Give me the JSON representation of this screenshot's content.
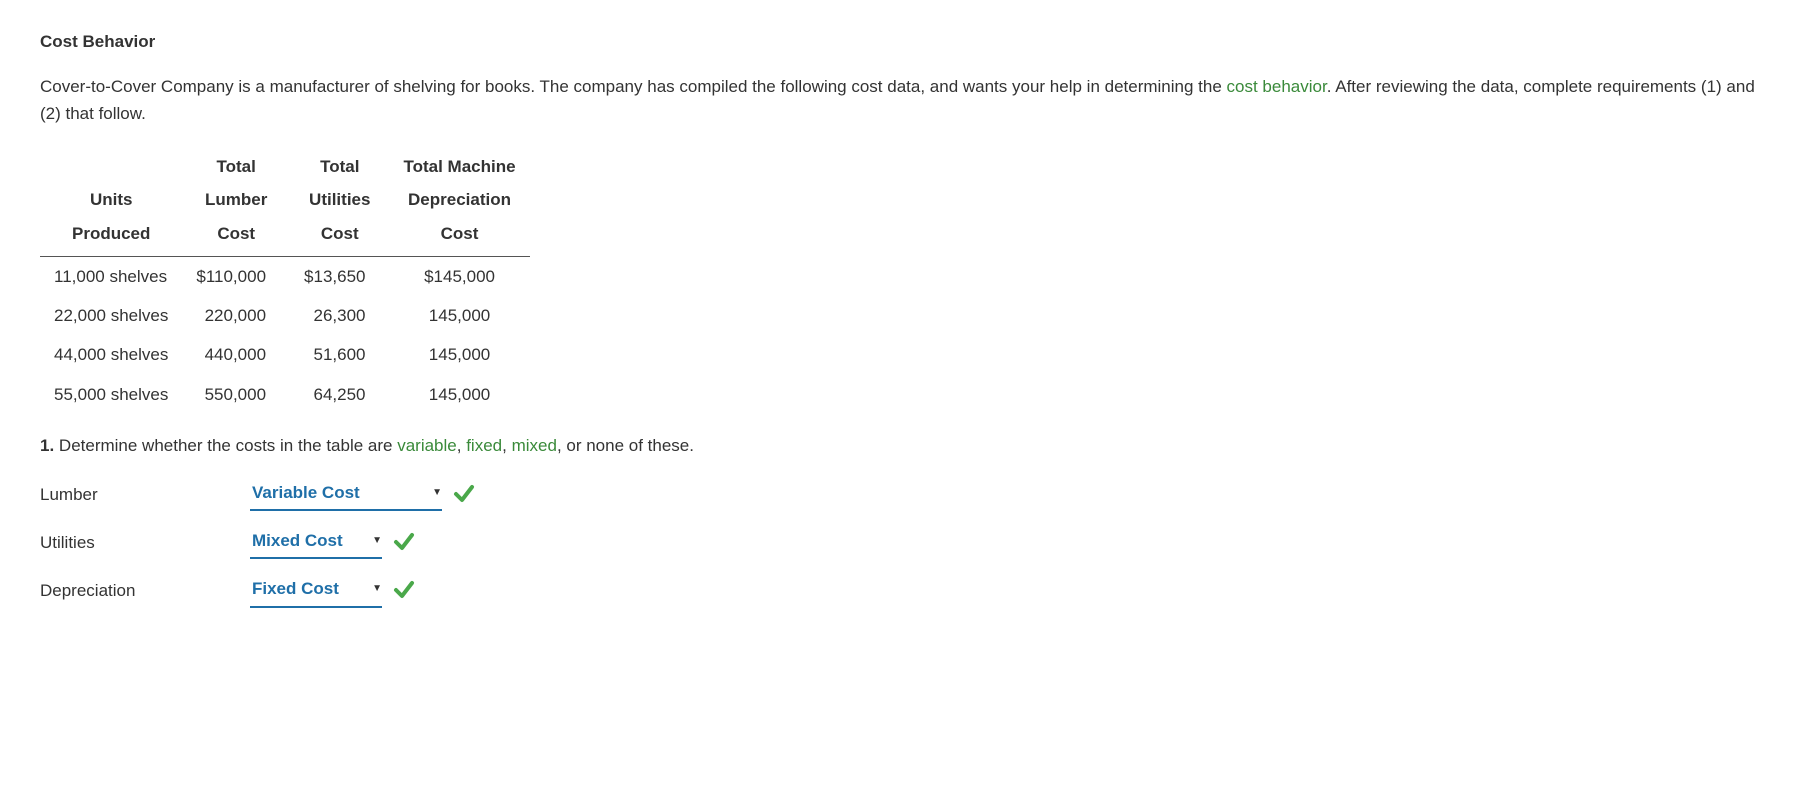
{
  "title": "Cost Behavior",
  "intro": {
    "part1": "Cover-to-Cover Company is a manufacturer of shelving for books. The company has compiled the following cost data, and wants your help in determining the ",
    "term": "cost behavior",
    "part2": ". After reviewing the data, complete requirements (1) and (2) that follow."
  },
  "table": {
    "headers": {
      "units_l1": "Units",
      "units_l2": "Produced",
      "lumber_l0": "Total",
      "lumber_l1": "Lumber",
      "lumber_l2": "Cost",
      "util_l0": "Total",
      "util_l1": "Utilities",
      "util_l2": "Cost",
      "dep_l0": "Total Machine",
      "dep_l1": "Depreciation",
      "dep_l2": "Cost"
    },
    "rows": [
      {
        "units": "11,000 shelves",
        "lumber": "$110,000",
        "util": "$13,650",
        "dep": "$145,000"
      },
      {
        "units": "22,000 shelves",
        "lumber": "220,000",
        "util": "26,300",
        "dep": "145,000"
      },
      {
        "units": "44,000 shelves",
        "lumber": "440,000",
        "util": "51,600",
        "dep": "145,000"
      },
      {
        "units": "55,000 shelves",
        "lumber": "550,000",
        "util": "64,250",
        "dep": "145,000"
      }
    ]
  },
  "question1": {
    "num": "1.",
    "pre": " Determine whether the costs in the table are ",
    "t1": "variable",
    "c1": ", ",
    "t2": "fixed",
    "c2": ", ",
    "t3": "mixed",
    "post": ", or none of these."
  },
  "answers": [
    {
      "label": "Lumber",
      "value": "Variable Cost",
      "wide": true,
      "correct": true
    },
    {
      "label": "Utilities",
      "value": "Mixed Cost",
      "wide": false,
      "correct": true
    },
    {
      "label": "Depreciation",
      "value": "Fixed Cost",
      "wide": false,
      "correct": true
    }
  ],
  "colors": {
    "link_green": "#3a8a3a",
    "select_blue": "#1f6fa8",
    "check_green": "#4aa84a",
    "text": "#333333"
  }
}
